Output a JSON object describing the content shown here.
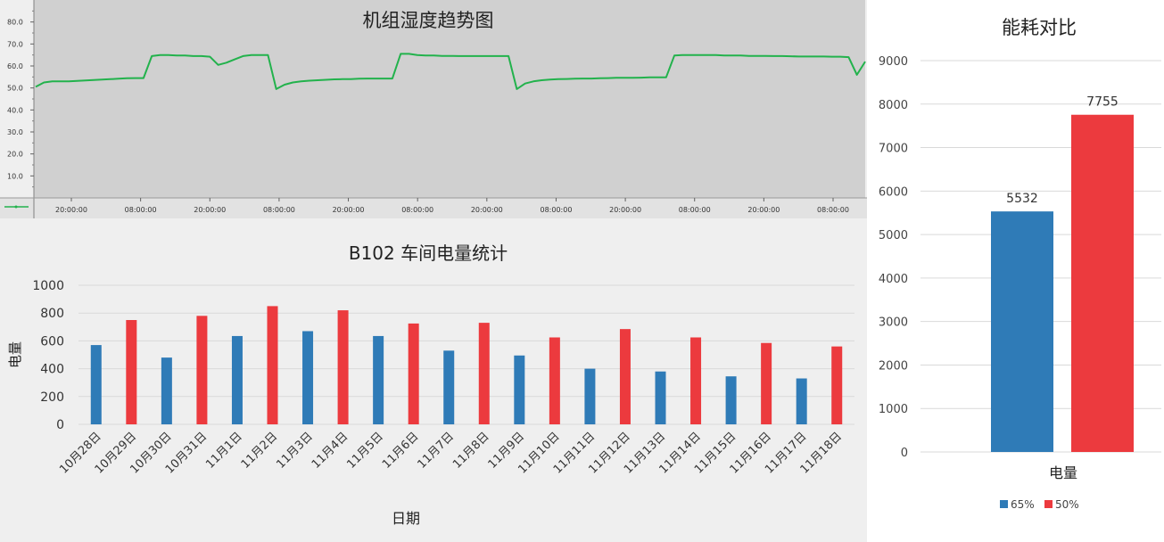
{
  "colors": {
    "trend_line": "#22b24c",
    "trend_plot_bg": "#d0d0d0",
    "series_blue": "#2f7bb7",
    "series_red": "#ec3a3e",
    "grid": "#d9d9d9",
    "page_bg": "#efefef"
  },
  "chart_data": [
    {
      "type": "line",
      "title": "机组湿度趋势图",
      "xlabel": "",
      "ylabel": "",
      "ylim": [
        0,
        90
      ],
      "y_ticks": [
        "10.0",
        "20.0",
        "30.0",
        "40.0",
        "50.0",
        "60.0",
        "70.0",
        "80.0"
      ],
      "x_ticks": [
        "20:00:00",
        "08:00:00",
        "20:00:00",
        "08:00:00",
        "20:00:00",
        "08:00:00",
        "20:00:00",
        "08:00:00",
        "20:00:00",
        "08:00:00",
        "20:00:00",
        "08:00:00"
      ],
      "grid": false,
      "series": [
        {
          "x": [
            0,
            1,
            2,
            3,
            4,
            5,
            6,
            7,
            8,
            9,
            10,
            11,
            12,
            13,
            14,
            15,
            16,
            17,
            18,
            19,
            20,
            21,
            22,
            23,
            24,
            25,
            26,
            27,
            28,
            29,
            30,
            31,
            32,
            33,
            34,
            35,
            36,
            37,
            38,
            39,
            40,
            41,
            42,
            43,
            44,
            45,
            46,
            47,
            48,
            49,
            50,
            51,
            52,
            53,
            54,
            55,
            56,
            57,
            58,
            59,
            60,
            61,
            62,
            63,
            64,
            65,
            66,
            67,
            68,
            69,
            70,
            71,
            72,
            73,
            74,
            75,
            76,
            77,
            78,
            79,
            80,
            81,
            82,
            83,
            84,
            85,
            86,
            87,
            88,
            89,
            90,
            91,
            92,
            93,
            94,
            95,
            96,
            97,
            98,
            99,
            100
          ],
          "values": [
            50.5,
            52.5,
            53,
            53,
            53,
            53.2,
            53.4,
            53.6,
            53.8,
            54,
            54.2,
            54.4,
            54.5,
            54.5,
            64.5,
            65,
            65,
            64.8,
            64.8,
            64.5,
            64.5,
            64.2,
            60.5,
            61.5,
            63,
            64.5,
            65,
            65,
            65,
            49.5,
            51.5,
            52.5,
            53,
            53.3,
            53.5,
            53.7,
            53.9,
            54,
            54,
            54.2,
            54.3,
            54.3,
            54.3,
            54.3,
            65.5,
            65.5,
            65,
            64.8,
            64.8,
            64.6,
            64.6,
            64.5,
            64.5,
            64.5,
            64.5,
            64.5,
            64.5,
            64.5,
            49.5,
            52,
            53,
            53.5,
            53.8,
            54,
            54.1,
            54.2,
            54.3,
            54.3,
            54.4,
            54.5,
            54.6,
            54.6,
            54.6,
            54.7,
            54.8,
            54.8,
            54.8,
            64.8,
            65,
            65,
            65,
            65,
            65,
            64.8,
            64.8,
            64.8,
            64.6,
            64.6,
            64.6,
            64.5,
            64.5,
            64.4,
            64.3,
            64.3,
            64.3,
            64.3,
            64.2,
            64.2,
            64,
            56,
            62
          ]
        }
      ]
    },
    {
      "type": "bar",
      "title": "B102 车间电量统计",
      "xlabel": "日期",
      "ylabel": "电量",
      "ylim": [
        0,
        1000
      ],
      "y_ticks": [
        0,
        200,
        400,
        600,
        800,
        1000
      ],
      "grid": true,
      "categories": [
        "10月28日",
        "10月29日",
        "10月30日",
        "10月31日",
        "11月1日",
        "11月2日",
        "11月3日",
        "11月4日",
        "11月5日",
        "11月6日",
        "11月7日",
        "11月8日",
        "11月9日",
        "11月10日",
        "11月11日",
        "11月12日",
        "11月13日",
        "11月14日",
        "11月15日",
        "11月16日",
        "11月17日",
        "11月18日"
      ],
      "values": [
        570,
        750,
        480,
        780,
        635,
        850,
        670,
        820,
        635,
        725,
        530,
        730,
        495,
        625,
        400,
        685,
        380,
        625,
        345,
        585,
        330,
        560
      ],
      "bar_colors": [
        "#2f7bb7",
        "#ec3a3e"
      ]
    },
    {
      "type": "bar",
      "title": "能耗对比",
      "xlabel": "",
      "ylabel": "",
      "ylim": [
        0,
        9000
      ],
      "y_ticks": [
        0,
        1000,
        2000,
        3000,
        4000,
        5000,
        6000,
        7000,
        8000,
        9000
      ],
      "grid": true,
      "legend_position": "bottom",
      "categories": [
        "电量"
      ],
      "series": [
        {
          "name": "65%",
          "values": [
            5532
          ],
          "color": "#2f7bb7",
          "label": "5532"
        },
        {
          "name": "50%",
          "values": [
            7755
          ],
          "color": "#ec3a3e",
          "label": "7755"
        }
      ]
    }
  ]
}
